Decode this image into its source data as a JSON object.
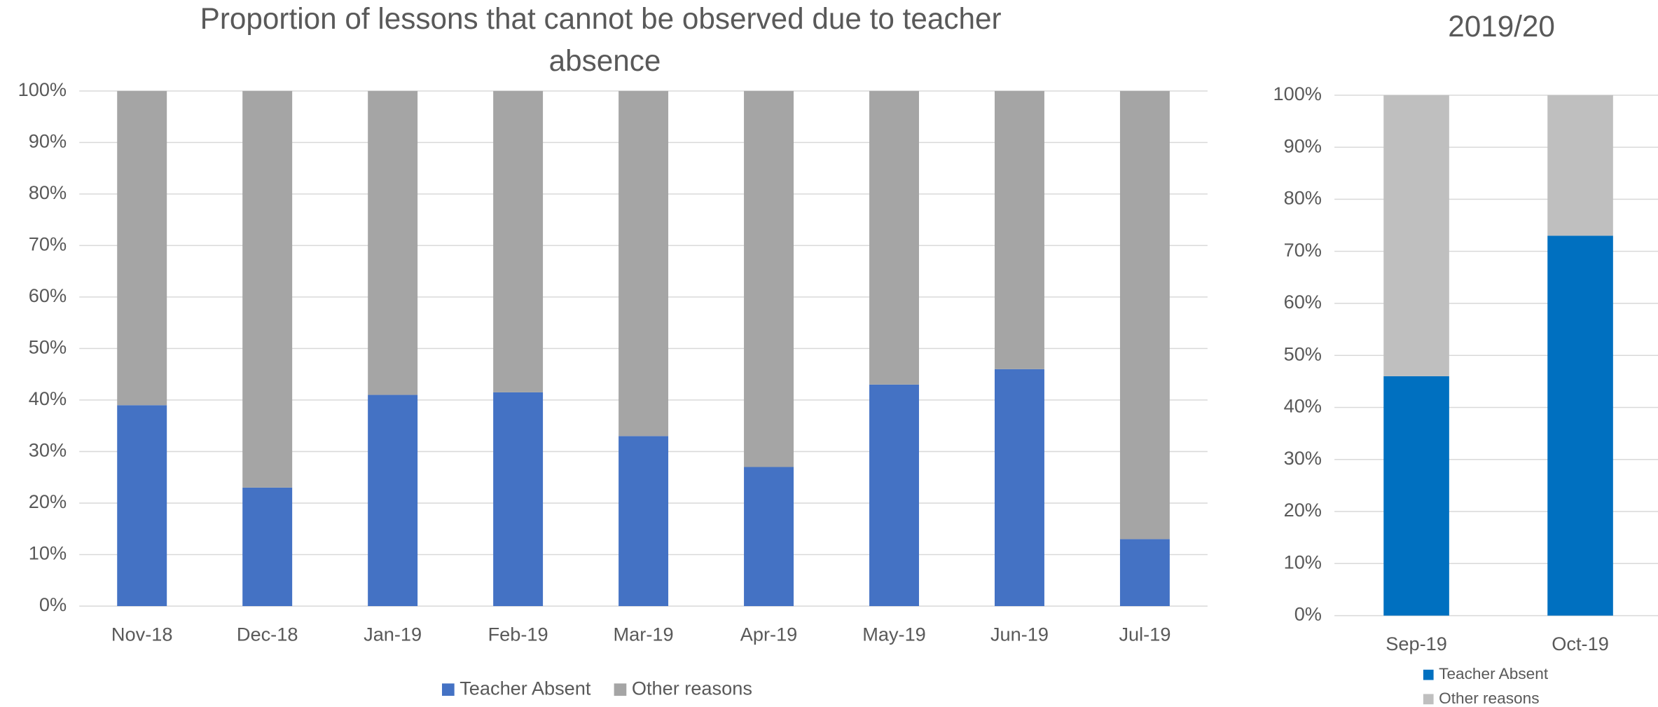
{
  "chart_data": [
    {
      "type": "stacked_bar",
      "title": "Proportion of lessons that cannot be observed due to teacher absence",
      "categories": [
        "Nov-18",
        "Dec-18",
        "Jan-19",
        "Feb-19",
        "Mar-19",
        "Apr-19",
        "May-19",
        "Jun-19",
        "Jul-19"
      ],
      "series": [
        {
          "name": "Teacher Absent",
          "color": "#4472c4",
          "values": [
            39,
            23,
            41,
            41.5,
            33,
            27,
            43,
            46,
            13
          ]
        },
        {
          "name": "Other reasons",
          "color": "#a5a5a5",
          "values": [
            61,
            77,
            59,
            58.5,
            67,
            73,
            57,
            54,
            87
          ]
        }
      ],
      "ylim": [
        0,
        100
      ],
      "yticks": [
        {
          "value": 0,
          "label": "0%"
        },
        {
          "value": 10,
          "label": "10%"
        },
        {
          "value": 20,
          "label": "20%"
        },
        {
          "value": 30,
          "label": "30%"
        },
        {
          "value": 40,
          "label": "40%"
        },
        {
          "value": 50,
          "label": "50%"
        },
        {
          "value": 60,
          "label": "60%"
        },
        {
          "value": 70,
          "label": "70%"
        },
        {
          "value": 80,
          "label": "80%"
        },
        {
          "value": 90,
          "label": "90%"
        },
        {
          "value": 100,
          "label": "100%"
        }
      ],
      "grid": true,
      "legend": "bottom"
    },
    {
      "type": "stacked_bar",
      "title": "2019/20",
      "categories": [
        "Sep-19",
        "Oct-19"
      ],
      "series": [
        {
          "name": "Teacher Absent",
          "color": "#0070c0",
          "values": [
            46,
            73
          ]
        },
        {
          "name": "Other reasons",
          "color": "#bfbfbf",
          "values": [
            54,
            27
          ]
        }
      ],
      "ylim": [
        0,
        100
      ],
      "yticks": [
        {
          "value": 0,
          "label": "0%"
        },
        {
          "value": 10,
          "label": "10%"
        },
        {
          "value": 20,
          "label": "20%"
        },
        {
          "value": 30,
          "label": "30%"
        },
        {
          "value": 40,
          "label": "40%"
        },
        {
          "value": 50,
          "label": "50%"
        },
        {
          "value": 60,
          "label": "60%"
        },
        {
          "value": 70,
          "label": "70%"
        },
        {
          "value": 80,
          "label": "80%"
        },
        {
          "value": 90,
          "label": "90%"
        },
        {
          "value": 100,
          "label": "100%"
        }
      ],
      "grid": true,
      "legend": "bottom"
    }
  ]
}
